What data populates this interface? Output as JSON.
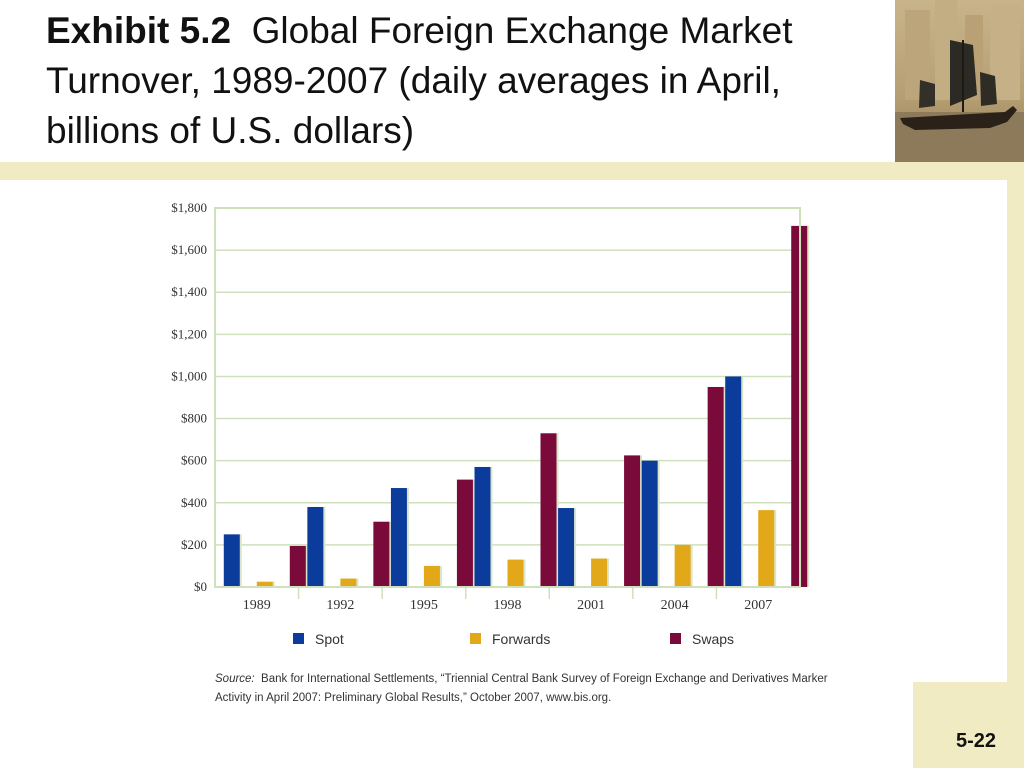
{
  "slide": {
    "title_bold": "Exhibit 5.2",
    "title_rest": "Global Foreign Exchange Market Turnover, 1989-2007 (daily averages in April, billions of U.S. dollars)",
    "page_number": "5-22"
  },
  "source": {
    "label": "Source:",
    "text": "Bank for International Settlements, “Triennial Central Bank Survey of Foreign Exchange and Derivatives Marker Activity in April 2007: Preliminary Global Results,” October 2007, www.bis.org."
  },
  "chart_data": {
    "type": "bar",
    "categories": [
      "1989",
      "1992",
      "1995",
      "1998",
      "2001",
      "2004",
      "2007"
    ],
    "series": [
      {
        "name": "Spot",
        "values": [
          250,
          380,
          470,
          570,
          375,
          600,
          1000
        ],
        "color": "#0b3c9c"
      },
      {
        "name": "Forwards",
        "values": [
          25,
          40,
          100,
          130,
          135,
          200,
          365
        ],
        "color": "#e3a81a"
      },
      {
        "name": "Swaps",
        "values": [
          195,
          310,
          510,
          730,
          625,
          950,
          1715
        ],
        "color": "#7a0a3a"
      }
    ],
    "ylim": [
      0,
      1800
    ],
    "yticks": [
      "$0",
      "$200",
      "$400",
      "$600",
      "$800",
      "$1,000",
      "$1,200",
      "$1,400",
      "$1,600",
      "$1,800"
    ],
    "grid": true,
    "legend_position": "bottom"
  },
  "colors": {
    "accent_band": "#f0ebc3",
    "grid": "#cfe0bd",
    "plot_border": "#cfe0bd"
  },
  "photo_icon": "sailing-junk-photo"
}
